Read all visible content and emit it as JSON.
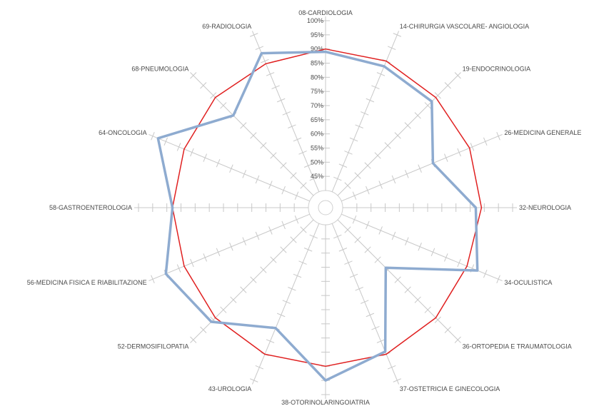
{
  "chart_data": {
    "type": "radar",
    "title": "",
    "categories": [
      "08-CARDIOLOGIA",
      "14-CHIRURGIA VASCOLARE- ANGIOLOGIA",
      "19-ENDOCRINOLOGIA",
      "26-MEDICINA GENERALE",
      "32-NEUROLOGIA",
      "34-OCULISTICA",
      "36-ORTOPEDIA E TRAUMATOLOGIA",
      "37-OSTETRICIA E GINECOLOGIA",
      "38-OTORINOLARINGOIATRIA",
      "43-UROLOGIA",
      "52-DERMOSIFILOPATIA",
      "56-MEDICINA FISICA E RIABILITAZIONE",
      "58-GASTROENTEROLOGIA",
      "64-ONCOLOGIA",
      "68-PNEUMOLOGIA",
      "69-RADIOLOGIA"
    ],
    "radial_ticks": [
      "45%",
      "50%",
      "55%",
      "60%",
      "65%",
      "70%",
      "75%",
      "80%",
      "85%",
      "90%",
      "95%",
      "100%"
    ],
    "rmin": 40,
    "rmax": 100,
    "series": [
      {
        "color": "#e02020",
        "values": [
          90,
          90,
          89,
          89,
          89,
          88,
          89,
          90,
          90,
          90,
          89,
          88,
          88,
          88,
          89,
          89
        ]
      },
      {
        "color": "#8eabd0",
        "values": [
          89,
          88,
          87,
          75,
          87,
          92,
          64,
          89,
          95,
          80,
          91,
          95,
          88,
          98,
          80,
          93
        ]
      }
    ]
  }
}
